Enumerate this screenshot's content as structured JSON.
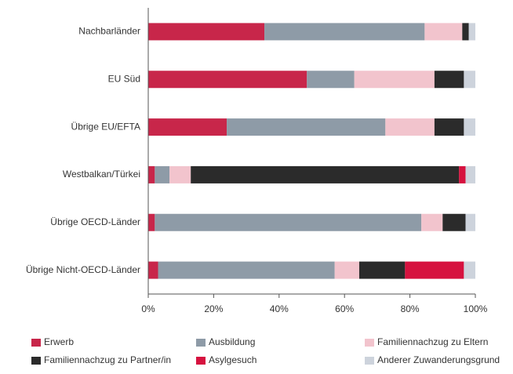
{
  "chart_data": {
    "type": "bar",
    "orientation": "horizontal",
    "stacked": true,
    "categories": [
      "Nachbarländer",
      "EU Süd",
      "Übrige EU/EFTA",
      "Westbalkan/Türkei",
      "Übrige OECD-Länder",
      "Übrige Nicht-OECD-Länder"
    ],
    "series": [
      {
        "name": "Erwerb",
        "color": "#c8264a",
        "values": [
          35.5,
          48.5,
          24,
          2,
          2,
          3
        ]
      },
      {
        "name": "Ausbildung",
        "color": "#8e9ba7",
        "values": [
          49,
          14.5,
          48.5,
          4.5,
          81.5,
          54
        ]
      },
      {
        "name": "Familiennachzug zu Eltern",
        "color": "#f2c4cd",
        "values": [
          11.5,
          24.5,
          15,
          6.5,
          6.5,
          7.5
        ]
      },
      {
        "name": "Familiennachzug zu Partner/in",
        "color": "#2b2b2b",
        "values": [
          2,
          9,
          9,
          82,
          7,
          14
        ]
      },
      {
        "name": "Asylgesuch",
        "color": "#d6123f",
        "values": [
          0,
          0,
          0,
          2,
          0,
          18
        ]
      },
      {
        "name": "Anderer Zuwanderungsgrund",
        "color": "#cdd3dc",
        "values": [
          2,
          3.5,
          3.5,
          3,
          3,
          3.5
        ]
      }
    ],
    "xlim": [
      0,
      100
    ],
    "xticks": [
      {
        "value": 0,
        "label": "0%"
      },
      {
        "value": 20,
        "label": "20%"
      },
      {
        "value": 40,
        "label": "40%"
      },
      {
        "value": 60,
        "label": "60%"
      },
      {
        "value": 80,
        "label": "80%"
      },
      {
        "value": 100,
        "label": "100%"
      }
    ]
  }
}
